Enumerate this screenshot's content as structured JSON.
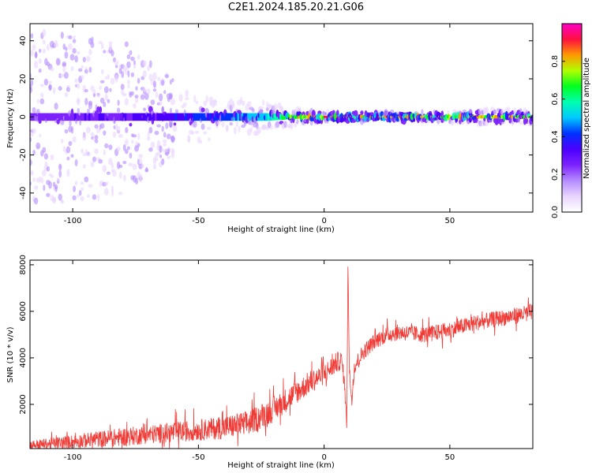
{
  "title": "C2E1.2024.185.20.21.G06",
  "colors": {
    "snr_line": "#f03a35",
    "colormap": [
      "#ffffff",
      "#e9d5ff",
      "#b48cff",
      "#7d22ff",
      "#4b00ff",
      "#0030ff",
      "#00c8ff",
      "#00ffb0",
      "#00ff20",
      "#b0ff00",
      "#ff9900",
      "#ff1040",
      "#ff00c8"
    ]
  },
  "chart_data": [
    {
      "type": "heatmap",
      "name": "spectrogram",
      "xlabel": "Height of straight line (km)",
      "ylabel": "Frequency (Hz)",
      "xlim": [
        -117,
        83
      ],
      "ylim": [
        -50,
        49
      ],
      "xticks": [
        -100,
        -50,
        0,
        50
      ],
      "xtick_labels": [
        "-100",
        "-50",
        "0",
        "50"
      ],
      "yticks": [
        -40,
        -20,
        0,
        20,
        40
      ],
      "ytick_labels": [
        "-40",
        "-20",
        "0",
        "20",
        "40"
      ],
      "colorbar": {
        "label": "Normalized spectral amplitude",
        "range": [
          0,
          1
        ],
        "ticks": [
          0.0,
          0.2,
          0.4,
          0.6,
          0.8
        ],
        "tick_labels": [
          "0.0",
          "0.2",
          "0.4",
          "0.6",
          "0.8"
        ]
      },
      "description_profile": {
        "x": [
          -117,
          -100,
          -80,
          -60,
          -40,
          -20,
          -10,
          0,
          10,
          20,
          40,
          60,
          83
        ],
        "center_amplitude": [
          0.25,
          0.3,
          0.32,
          0.38,
          0.45,
          0.6,
          0.85,
          0.95,
          0.95,
          0.92,
          0.9,
          0.85,
          0.85
        ],
        "spread_hz": [
          45,
          45,
          40,
          20,
          10,
          6,
          3,
          2,
          2,
          2,
          2,
          3,
          3
        ]
      },
      "grid": false
    },
    {
      "type": "line",
      "name": "snr",
      "xlabel": "Height of straight line (km)",
      "ylabel": "SNR (10 * v/v)",
      "xlim": [
        -117,
        83
      ],
      "ylim": [
        100,
        8200
      ],
      "xticks": [
        -100,
        -50,
        0,
        50
      ],
      "xtick_labels": [
        "-100",
        "-50",
        "0",
        "50"
      ],
      "yticks": [
        2000,
        4000,
        6000,
        8000
      ],
      "ytick_labels": [
        "2000",
        "4000",
        "6000",
        "8000"
      ],
      "x": [
        -117,
        -110,
        -100,
        -90,
        -80,
        -70,
        -60,
        -50,
        -40,
        -30,
        -20,
        -10,
        -5,
        0,
        5,
        7,
        8,
        9,
        9.5,
        10,
        11,
        12,
        14,
        16,
        20,
        25,
        30,
        40,
        50,
        60,
        70,
        80,
        83
      ],
      "y": [
        250,
        300,
        400,
        500,
        600,
        700,
        800,
        900,
        1000,
        1200,
        1800,
        2600,
        3000,
        3300,
        3800,
        3900,
        3000,
        1200,
        8200,
        3500,
        2200,
        3600,
        4000,
        4300,
        4700,
        5000,
        5100,
        5000,
        5200,
        5500,
        5700,
        5900,
        6000
      ],
      "noise_amplitude": [
        200,
        250,
        300,
        350,
        400,
        400,
        450,
        450,
        500,
        550,
        550,
        500,
        500,
        450,
        450,
        400,
        300,
        200,
        0,
        300,
        300,
        350,
        350,
        350,
        350,
        350,
        350,
        350,
        350,
        350,
        350,
        350,
        350
      ],
      "grid": false
    }
  ]
}
